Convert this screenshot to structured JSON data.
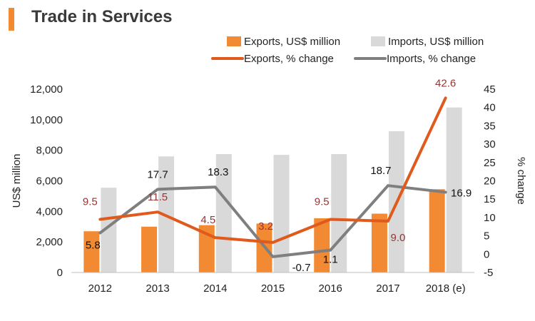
{
  "header": {
    "title": "Trade in Services"
  },
  "colors": {
    "exports_bar": "#f28a33",
    "imports_bar": "#d9d9d9",
    "exports_line": "#e05a1b",
    "imports_line": "#7f7f7f",
    "label_red": "#993333",
    "label_black": "#111111",
    "title_accent": "#f28a33"
  },
  "chart_data": {
    "type": "bar",
    "title": "Trade in Services",
    "categories": [
      "2012",
      "2013",
      "2014",
      "2015",
      "2016",
      "2017",
      "2018 (e)"
    ],
    "series": [
      {
        "name": "Exports, US$ million",
        "kind": "bar",
        "axis": "left",
        "values": [
          2700,
          3000,
          3100,
          3200,
          3550,
          3850,
          5450
        ]
      },
      {
        "name": "Imports, US$ million",
        "kind": "bar",
        "axis": "left",
        "values": [
          5550,
          7600,
          7750,
          7700,
          7750,
          9250,
          10800
        ]
      },
      {
        "name": "Exports, % change",
        "kind": "line",
        "axis": "right",
        "values": [
          9.5,
          11.5,
          4.5,
          3.2,
          9.5,
          9.0,
          42.6
        ],
        "labels": [
          "9.5",
          "11.5",
          "4.5",
          "3.2",
          "9.5",
          "9.0",
          "42.6"
        ]
      },
      {
        "name": "Imports, % change",
        "kind": "line",
        "axis": "right",
        "values": [
          5.8,
          17.7,
          18.3,
          -0.7,
          1.1,
          18.7,
          16.9
        ],
        "labels": [
          "5.8",
          "17.7",
          "18.3",
          "-0.7",
          "1.1",
          "18.7",
          "16.9"
        ]
      }
    ],
    "ylabel": "US$ million",
    "ylim": [
      0,
      12000
    ],
    "yticks": [
      "0",
      "2,000",
      "4,000",
      "6,000",
      "8,000",
      "10,000",
      "12,000"
    ],
    "y2label": "% change",
    "y2lim": [
      -5,
      45
    ],
    "y2ticks": [
      "-5",
      "0",
      "5",
      "10",
      "15",
      "20",
      "25",
      "30",
      "35",
      "40",
      "45"
    ],
    "legend": "top-right",
    "grid": false
  }
}
